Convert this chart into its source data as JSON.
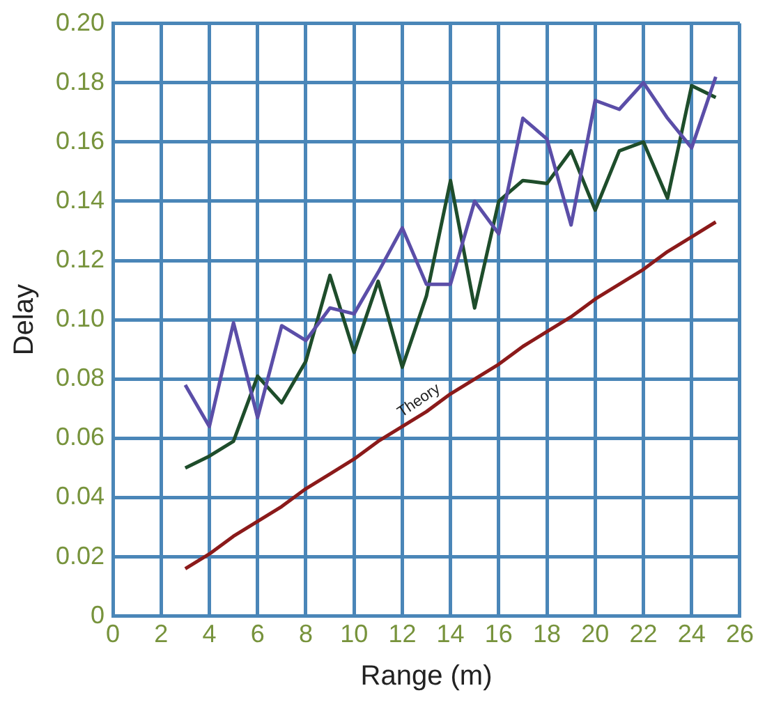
{
  "chart_data": {
    "type": "line",
    "xlabel": "Range (m)",
    "ylabel": "Delay",
    "x": [
      3,
      4,
      5,
      6,
      7,
      8,
      9,
      10,
      11,
      12,
      13,
      14,
      15,
      16,
      17,
      18,
      19,
      20,
      21,
      22,
      23,
      24,
      25
    ],
    "series": [
      {
        "color": "#5b4ea8",
        "values": [
          0.078,
          0.064,
          0.099,
          0.067,
          0.098,
          0.093,
          0.104,
          0.102,
          0.116,
          0.131,
          0.112,
          0.112,
          0.14,
          0.129,
          0.168,
          0.161,
          0.132,
          0.174,
          0.171,
          0.18,
          0.168,
          0.158,
          0.182
        ]
      },
      {
        "color": "#1e4d2b",
        "values": [
          0.05,
          0.054,
          0.059,
          0.081,
          0.072,
          0.086,
          0.115,
          0.089,
          0.113,
          0.084,
          0.108,
          0.147,
          0.104,
          0.14,
          0.147,
          0.146,
          0.157,
          0.137,
          0.157,
          0.16,
          0.141,
          0.179,
          0.175
        ]
      },
      {
        "name": "Theory",
        "color": "#8b1a1a",
        "values": [
          0.016,
          0.021,
          0.027,
          0.032,
          0.037,
          0.043,
          0.048,
          0.053,
          0.059,
          0.064,
          0.069,
          0.075,
          0.08,
          0.085,
          0.091,
          0.096,
          0.101,
          0.107,
          0.112,
          0.117,
          0.123,
          0.128,
          0.133
        ]
      }
    ],
    "xlim": [
      0,
      26
    ],
    "xticks": [
      0,
      2,
      4,
      6,
      8,
      10,
      12,
      14,
      16,
      18,
      20,
      22,
      24,
      26
    ],
    "ylim": [
      0,
      0.2
    ],
    "yticks": [
      0,
      {
        "value": 0.02,
        "label": "0.02"
      },
      {
        "value": 0.04,
        "label": "0.04"
      },
      {
        "value": 0.06,
        "label": "0.06"
      },
      {
        "value": 0.08,
        "label": "0.08"
      },
      {
        "value": 0.1,
        "label": "0.10"
      },
      {
        "value": 0.12,
        "label": "0.12"
      },
      {
        "value": 0.14,
        "label": "0.14"
      },
      {
        "value": 0.16,
        "label": "0.16"
      },
      {
        "value": 0.18,
        "label": "0.18"
      },
      {
        "value": 0.2,
        "label": "0.20"
      }
    ],
    "grid": true,
    "legend": false,
    "marker": "none",
    "line_style": "solid"
  }
}
